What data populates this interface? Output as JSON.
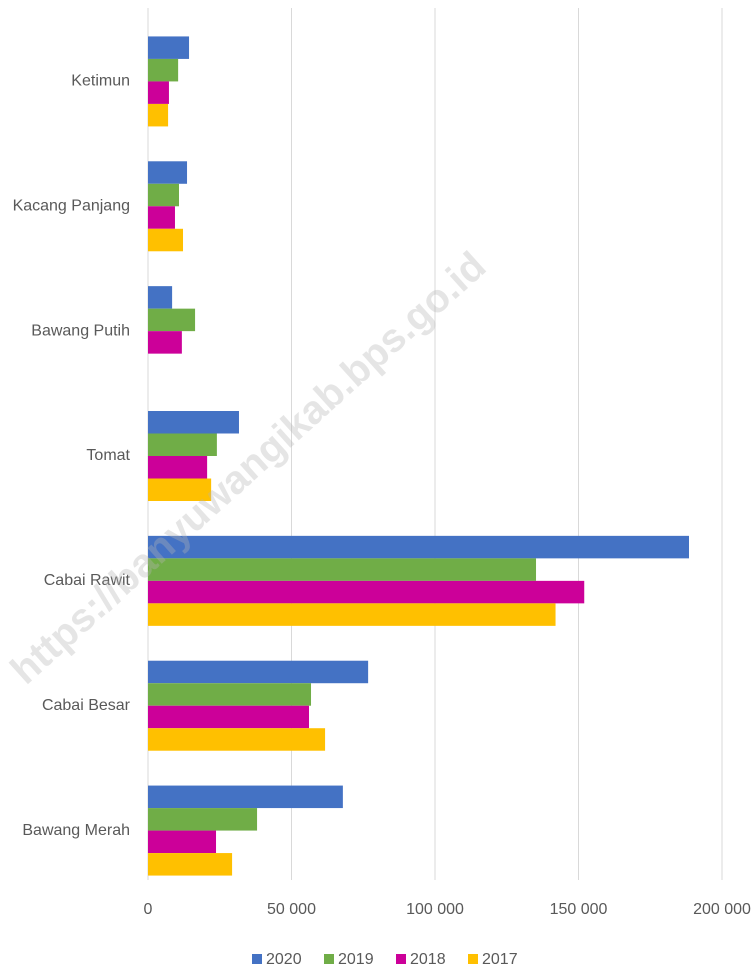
{
  "chart_data": {
    "type": "hbar",
    "watermark": "https://banyuwangikab.bps.go.id",
    "categories": [
      "Ketimun",
      "Kacang Panjang",
      "Bawang Putih",
      "Tomat",
      "Cabai Rawit",
      "Cabai Besar",
      "Bawang Merah"
    ],
    "series": [
      {
        "name": "2020",
        "color": "#4472c4",
        "values": [
          14300,
          13600,
          8400,
          31700,
          188500,
          76700,
          67900
        ]
      },
      {
        "name": "2019",
        "color": "#70ad47",
        "values": [
          10500,
          10800,
          16400,
          24000,
          135200,
          56800,
          38000
        ]
      },
      {
        "name": "2018",
        "color": "#cc0099",
        "values": [
          7300,
          9400,
          11800,
          20600,
          152000,
          56100,
          23700
        ]
      },
      {
        "name": "2017",
        "color": "#ffc000",
        "values": [
          7000,
          12200,
          null,
          22000,
          142000,
          61700,
          29300
        ]
      }
    ],
    "xlim": [
      0,
      200000
    ],
    "xticks": [
      0,
      {
        "value": 50000,
        "label": "50 000"
      },
      {
        "value": 100000,
        "label": "100 000"
      },
      {
        "value": 150000,
        "label": "150 000"
      },
      {
        "value": 200000,
        "label": "200 000"
      }
    ],
    "grid": true,
    "legend": "bottom"
  }
}
